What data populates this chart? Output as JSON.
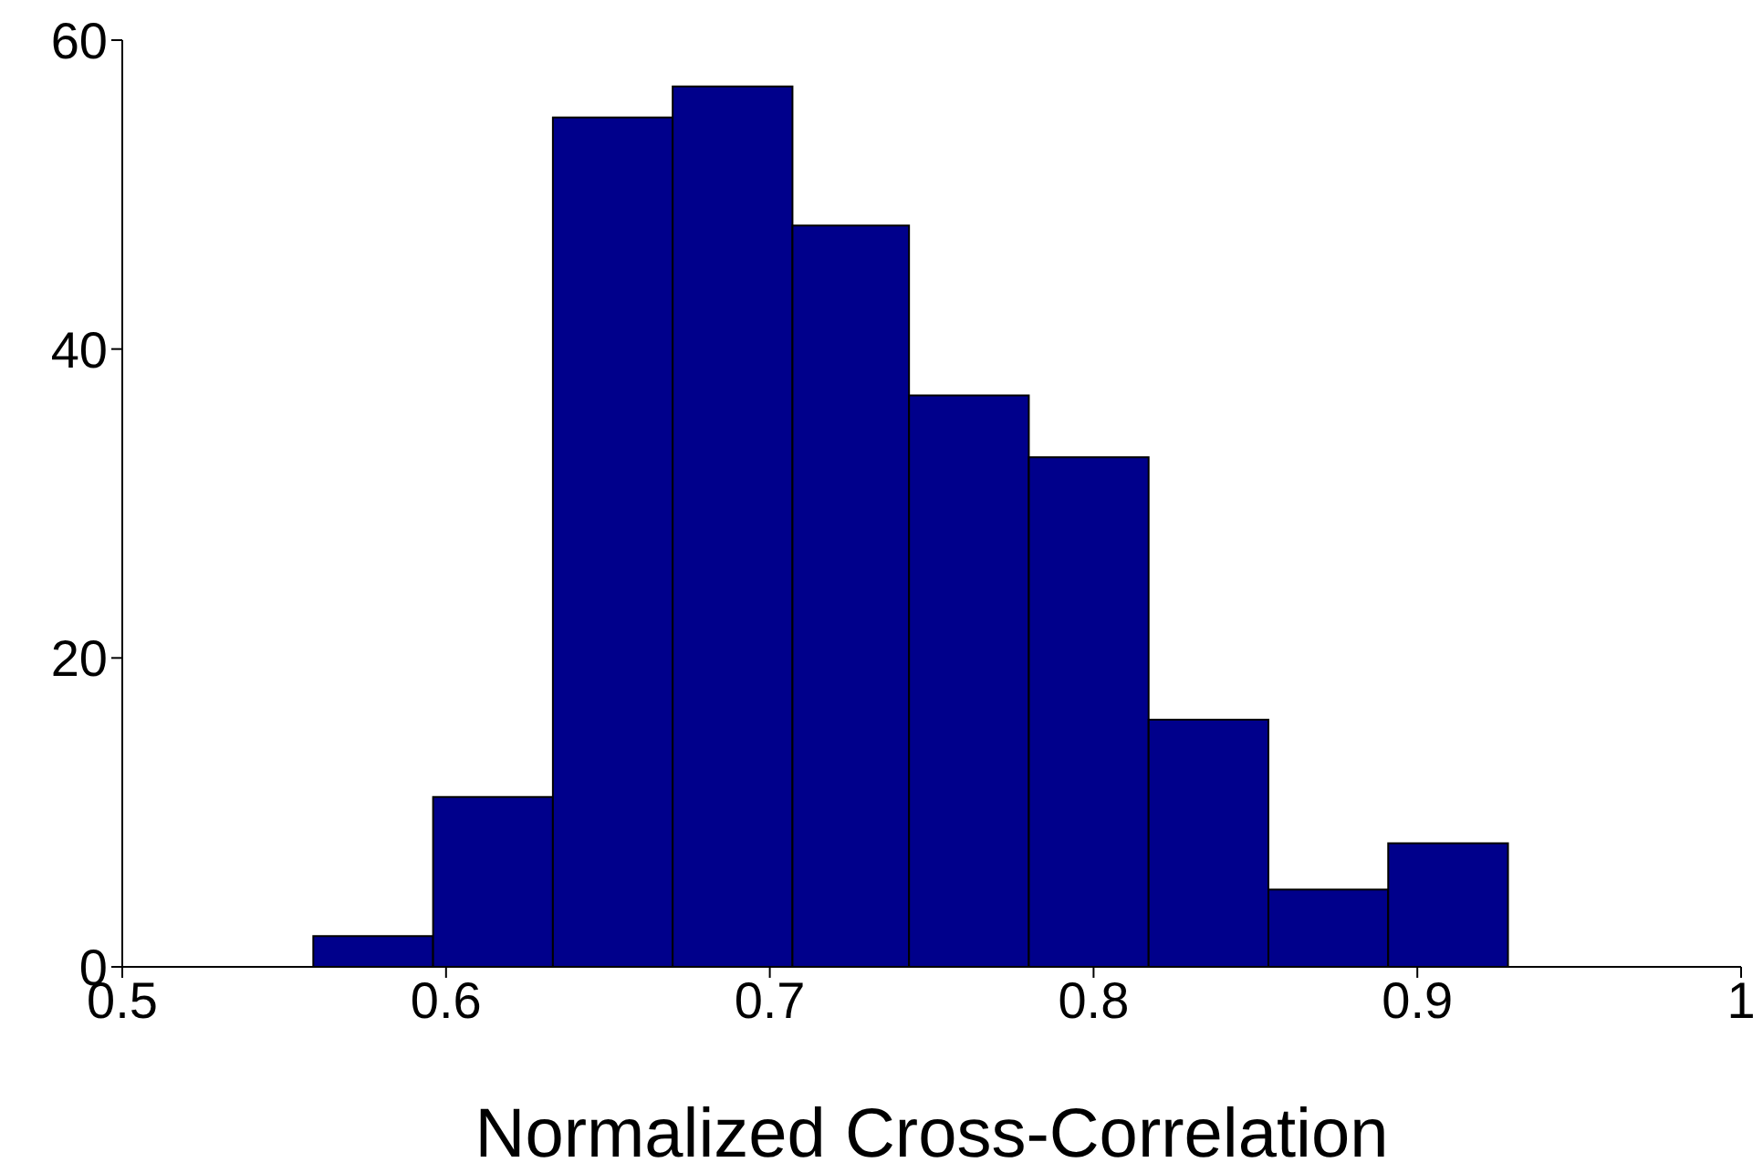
{
  "chart_data": {
    "type": "histogram",
    "xlabel": "Normalized Cross-Correlation",
    "bins": [
      0.559,
      0.596,
      0.633,
      0.67,
      0.707,
      0.743,
      0.78,
      0.817,
      0.854,
      0.891,
      0.928
    ],
    "values": [
      2,
      11,
      55,
      57,
      48,
      37,
      33,
      16,
      5,
      8
    ],
    "color": "#00008b",
    "xlim": [
      0.5,
      1
    ],
    "xticks": [
      0.5,
      0.6,
      0.7,
      0.8,
      0.9,
      1
    ],
    "ylim": [
      0,
      60
    ],
    "yticks": [
      0,
      20,
      40,
      60
    ],
    "grid": false
  }
}
